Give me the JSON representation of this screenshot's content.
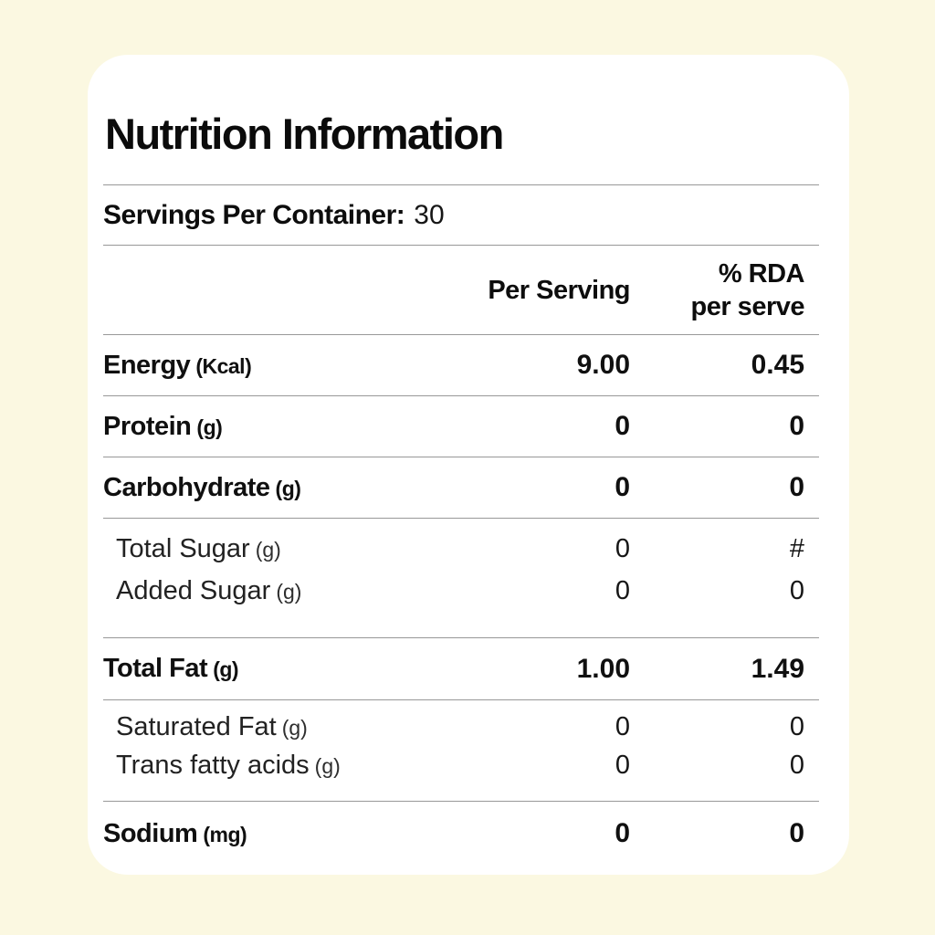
{
  "page": {
    "background_color": "#FBF8E1",
    "card_color": "#FFFFFF",
    "divider_color": "#989898",
    "text_color": "#0D0D0D"
  },
  "title": "Nutrition Information",
  "servings": {
    "label": "Servings Per Container:",
    "value": "30"
  },
  "table": {
    "header": {
      "per_serving": "Per Serving",
      "rda_line1": "% RDA",
      "rda_line2": "per serve"
    },
    "rows": [
      {
        "label": "Energy",
        "unit": "(Kcal)",
        "per_serving": "9.00",
        "rda": "0.45",
        "emphasis": "bold"
      },
      {
        "label": "Protein",
        "unit": "(g)",
        "per_serving": "0",
        "rda": "0",
        "emphasis": "bold"
      },
      {
        "label": "Carbohydrate",
        "unit": "(g)",
        "per_serving": "0",
        "rda": "0",
        "emphasis": "bold"
      },
      {
        "label": "Total Sugar",
        "unit": "(g)",
        "per_serving": "0",
        "rda": "#",
        "emphasis": "sub"
      },
      {
        "label": "Added Sugar",
        "unit": "(g)",
        "per_serving": "0",
        "rda": "0",
        "emphasis": "sub"
      },
      {
        "label": "Total Fat",
        "unit": "(g)",
        "per_serving": "1.00",
        "rda": "1.49",
        "emphasis": "bold"
      },
      {
        "label": "Saturated Fat",
        "unit": "(g)",
        "per_serving": "0",
        "rda": "0",
        "emphasis": "sub"
      },
      {
        "label": "Trans fatty acids",
        "unit": "(g)",
        "per_serving": "0",
        "rda": "0",
        "emphasis": "sub"
      },
      {
        "label": "Sodium",
        "unit": "(mg)",
        "per_serving": "0",
        "rda": "0",
        "emphasis": "bold"
      }
    ]
  }
}
